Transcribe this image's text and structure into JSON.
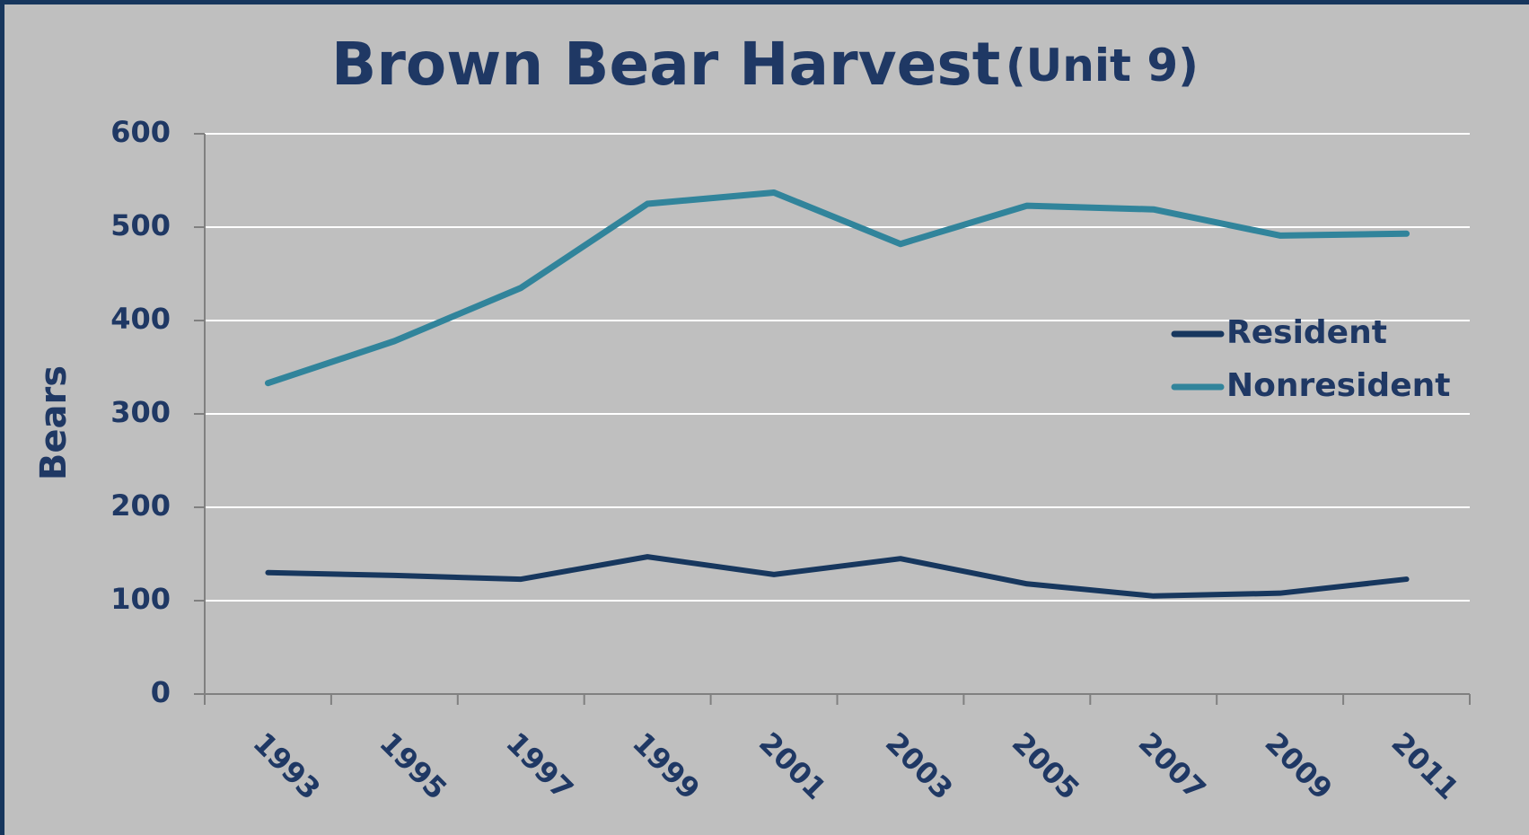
{
  "chart_data": {
    "type": "line",
    "title": "Brown Bear Harvest",
    "subtitle": "(Unit 9)",
    "y_label": "Bears",
    "categories": [
      "1993",
      "1995",
      "1997",
      "1999",
      "2001",
      "2003",
      "2005",
      "2007",
      "2009",
      "2011"
    ],
    "series": [
      {
        "name": "Resident",
        "color": "#17375e",
        "values": [
          130,
          127,
          123,
          147,
          128,
          145,
          118,
          105,
          108,
          123
        ]
      },
      {
        "name": "Nonresident",
        "color": "#31849b",
        "values": [
          333,
          378,
          435,
          525,
          537,
          482,
          523,
          519,
          491,
          493
        ]
      }
    ],
    "ylim": [
      0,
      600
    ],
    "yticks": [
      0,
      100,
      200,
      300,
      400,
      500,
      600
    ],
    "grid": true,
    "legend": "right"
  }
}
